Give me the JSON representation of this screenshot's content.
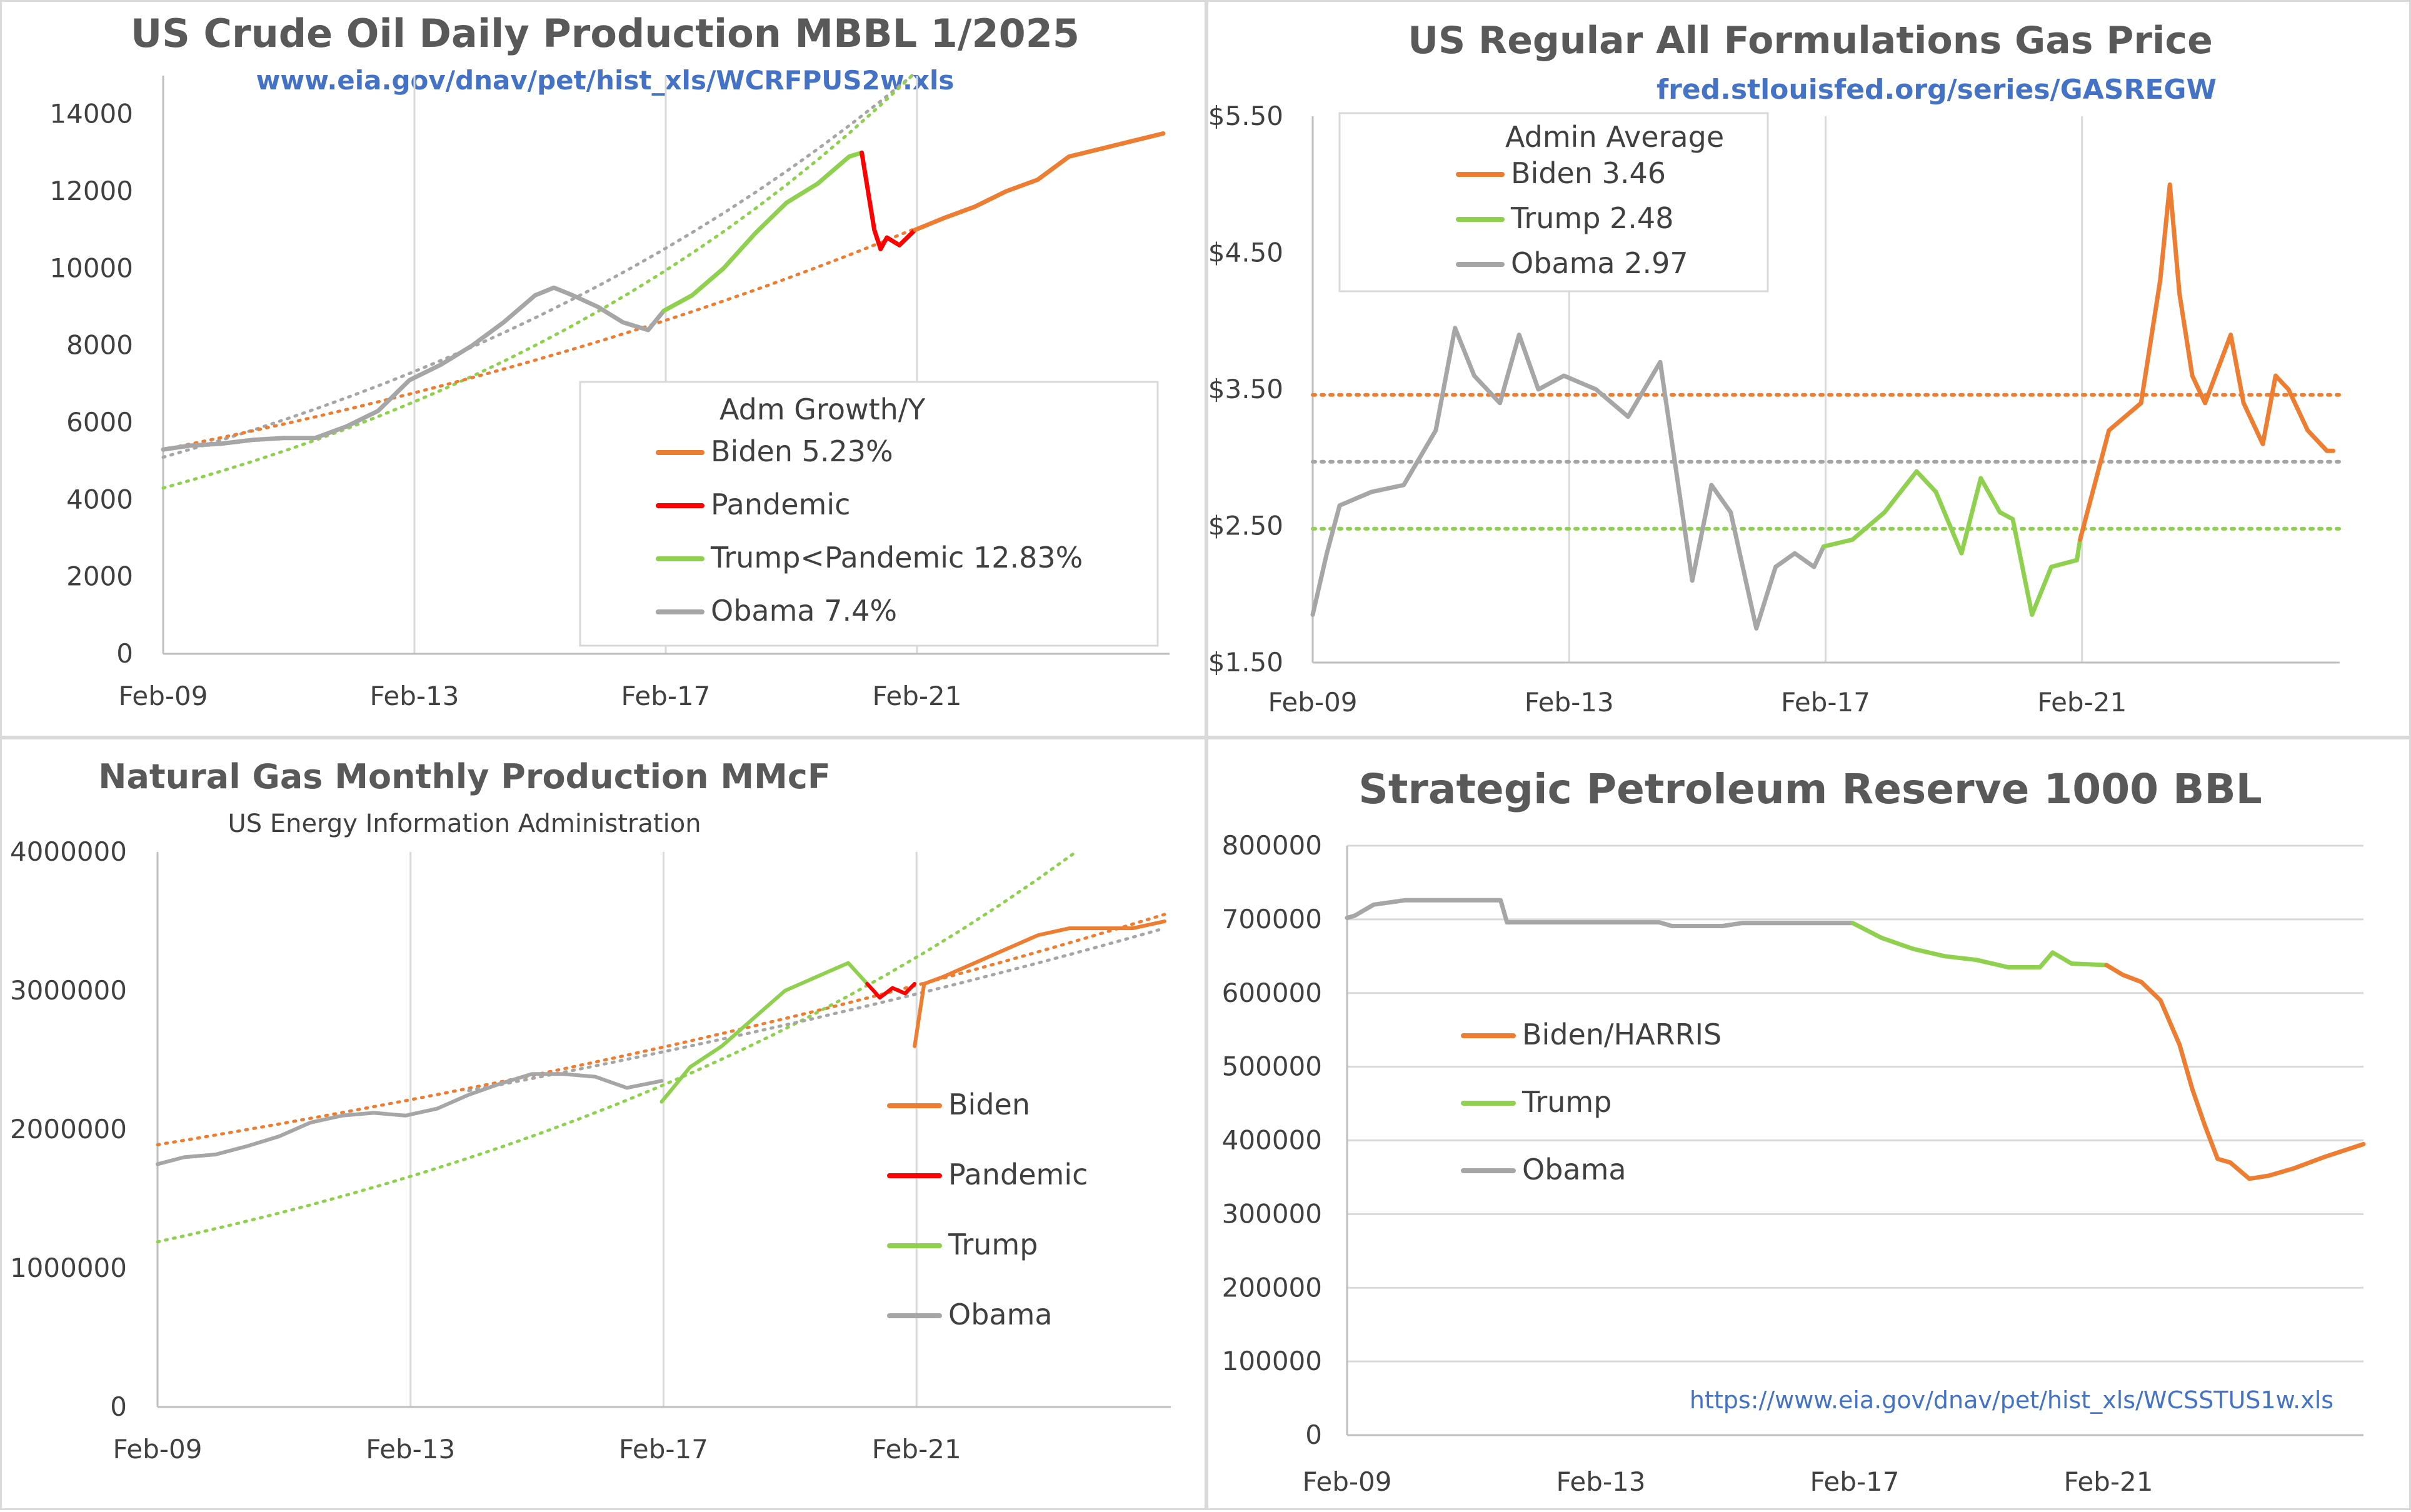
{
  "colors": {
    "biden": "#ed7d31",
    "pandemic": "#ff0000",
    "trump": "#8fd14f",
    "obama": "#a6a6a6",
    "grid": "#d9d9d9",
    "link": "#4472c4"
  },
  "chart_data": [
    {
      "id": "crude",
      "type": "line",
      "title": "US Crude Oil Daily Production MBBL 1/2025",
      "subtitle": "www.eia.gov/dnav/pet/hist_xls/WCRFPUS2w.xls",
      "x_ticks": [
        "Feb-09",
        "Feb-13",
        "Feb-17",
        "Feb-21"
      ],
      "xlim": [
        2009.08,
        2025.1
      ],
      "ylim": [
        0,
        15000
      ],
      "y_ticks": [
        0,
        2000,
        4000,
        6000,
        8000,
        10000,
        12000,
        14000
      ],
      "y_tick_labels": [
        "0",
        "2000",
        "4000",
        "6000",
        "8000",
        "10000",
        "12000",
        "14000"
      ],
      "grid": "vertical",
      "legend": {
        "title": "Adm  Growth/Y",
        "entries": [
          "Biden 5.23%",
          "Pandemic",
          "Trump<Pandemic 12.83%",
          "Obama 7.4%"
        ]
      },
      "series": [
        {
          "name": "Obama",
          "x": [
            2009.08,
            2009.5,
            2010.0,
            2010.5,
            2011.0,
            2011.5,
            2012.0,
            2012.5,
            2013.0,
            2013.5,
            2014.0,
            2014.5,
            2015.0,
            2015.3,
            2015.6,
            2016.0,
            2016.4,
            2016.8,
            2017.05
          ],
          "y": [
            5300,
            5400,
            5450,
            5550,
            5600,
            5600,
            5900,
            6300,
            7100,
            7500,
            8000,
            8600,
            9300,
            9500,
            9300,
            9000,
            8600,
            8400,
            8900
          ]
        },
        {
          "name": "Trump",
          "x": [
            2017.05,
            2017.5,
            2018.0,
            2018.5,
            2019.0,
            2019.5,
            2020.0,
            2020.2
          ],
          "y": [
            8900,
            9300,
            10000,
            10900,
            11700,
            12200,
            12900,
            13000
          ]
        },
        {
          "name": "Pandemic",
          "x": [
            2020.2,
            2020.3,
            2020.4,
            2020.5,
            2020.6,
            2020.8,
            2021.05
          ],
          "y": [
            13000,
            12000,
            11000,
            10500,
            10800,
            10600,
            11000
          ]
        },
        {
          "name": "Biden",
          "x": [
            2021.05,
            2021.5,
            2022.0,
            2022.5,
            2023.0,
            2023.5,
            2024.0,
            2024.5,
            2025.0
          ],
          "y": [
            11000,
            11300,
            11600,
            12000,
            12300,
            12900,
            13100,
            13300,
            13500
          ]
        }
      ],
      "trendlines": [
        {
          "name": "Obama",
          "x": [
            2009.08,
            2021.0
          ],
          "y": [
            5100,
            15000
          ]
        },
        {
          "name": "Trump",
          "x": [
            2009.08,
            2021.0
          ],
          "y": [
            4300,
            15000
          ]
        },
        {
          "name": "Biden",
          "x": [
            2009.08,
            2021.0
          ],
          "y": [
            5300,
            11000
          ]
        }
      ]
    },
    {
      "id": "gas-price",
      "type": "line",
      "title": "US Regular All Formulations Gas Price",
      "subtitle": "fred.stlouisfed.org/series/GASREGW",
      "x_ticks": [
        "Feb-09",
        "Feb-13",
        "Feb-17",
        "Feb-21"
      ],
      "xlim": [
        2009.08,
        2025.1
      ],
      "ylim": [
        1.5,
        5.5
      ],
      "y_ticks": [
        1.5,
        2.5,
        3.5,
        4.5,
        5.5
      ],
      "y_tick_labels": [
        "$1.50",
        "$2.50",
        "$3.50",
        "$4.50",
        "$5.50"
      ],
      "grid": "vertical",
      "legend": {
        "title": "Admin Average",
        "entries": [
          "Biden 3.46",
          "Trump 2.48",
          "Obama 2.97"
        ]
      },
      "series": [
        {
          "name": "Obama",
          "x": [
            2009.08,
            2009.3,
            2009.5,
            2010.0,
            2010.5,
            2011.0,
            2011.3,
            2011.6,
            2012.0,
            2012.3,
            2012.6,
            2013.0,
            2013.5,
            2014.0,
            2014.5,
            2015.0,
            2015.3,
            2015.6,
            2016.0,
            2016.3,
            2016.6,
            2016.9,
            2017.05
          ],
          "y": [
            1.85,
            2.3,
            2.65,
            2.75,
            2.8,
            3.2,
            3.95,
            3.6,
            3.4,
            3.9,
            3.5,
            3.6,
            3.5,
            3.3,
            3.7,
            2.1,
            2.8,
            2.6,
            1.75,
            2.2,
            2.3,
            2.2,
            2.35
          ]
        },
        {
          "name": "Trump",
          "x": [
            2017.05,
            2017.5,
            2018.0,
            2018.5,
            2018.8,
            2019.2,
            2019.5,
            2019.8,
            2020.0,
            2020.3,
            2020.6,
            2021.0,
            2021.05
          ],
          "y": [
            2.35,
            2.4,
            2.6,
            2.9,
            2.75,
            2.3,
            2.85,
            2.6,
            2.55,
            1.85,
            2.2,
            2.25,
            2.4
          ]
        },
        {
          "name": "Biden",
          "x": [
            2021.05,
            2021.5,
            2022.0,
            2022.3,
            2022.45,
            2022.6,
            2022.8,
            2023.0,
            2023.4,
            2023.6,
            2023.9,
            2024.1,
            2024.3,
            2024.6,
            2024.9,
            2025.0
          ],
          "y": [
            2.4,
            3.2,
            3.4,
            4.3,
            5.0,
            4.2,
            3.6,
            3.4,
            3.9,
            3.4,
            3.1,
            3.6,
            3.5,
            3.2,
            3.05,
            3.05
          ]
        }
      ],
      "averages": [
        {
          "name": "Biden",
          "value": 3.46
        },
        {
          "name": "Trump",
          "value": 2.48
        },
        {
          "name": "Obama",
          "value": 2.97
        }
      ]
    },
    {
      "id": "natgas",
      "type": "line",
      "title": "Natural Gas Monthly Production MMcF",
      "subtitle": "US Energy Information Administration",
      "x_ticks": [
        "Feb-09",
        "Feb-13",
        "Feb-17",
        "Feb-21"
      ],
      "xlim": [
        2009.08,
        2025.1
      ],
      "ylim": [
        0,
        4000000
      ],
      "y_ticks": [
        0,
        1000000,
        2000000,
        3000000,
        4000000
      ],
      "y_tick_labels": [
        "0",
        "1000000",
        "2000000",
        "3000000",
        "4000000"
      ],
      "grid": "vertical",
      "legend": {
        "title": "",
        "entries": [
          "Biden",
          "Pandemic",
          "Trump",
          "Obama"
        ]
      },
      "series": [
        {
          "name": "Obama",
          "x": [
            2009.08,
            2009.5,
            2010.0,
            2010.5,
            2011.0,
            2011.5,
            2012.0,
            2012.5,
            2013.0,
            2013.5,
            2014.0,
            2014.5,
            2015.0,
            2015.5,
            2016.0,
            2016.5,
            2017.05
          ],
          "y": [
            1750000,
            1800000,
            1820000,
            1880000,
            1950000,
            2050000,
            2100000,
            2120000,
            2100000,
            2150000,
            2250000,
            2330000,
            2400000,
            2400000,
            2380000,
            2300000,
            2350000
          ]
        },
        {
          "name": "Trump",
          "x": [
            2017.05,
            2017.5,
            2018.0,
            2018.5,
            2019.0,
            2019.5,
            2020.0,
            2020.3
          ],
          "y": [
            2200000,
            2450000,
            2600000,
            2800000,
            3000000,
            3100000,
            3200000,
            3050000
          ]
        },
        {
          "name": "Pandemic",
          "x": [
            2020.3,
            2020.5,
            2020.7,
            2020.9,
            2021.05
          ],
          "y": [
            3050000,
            2950000,
            3020000,
            2980000,
            3050000
          ]
        },
        {
          "name": "Biden",
          "x": [
            2021.05,
            2021.2,
            2021.5,
            2022.0,
            2022.5,
            2023.0,
            2023.5,
            2024.0,
            2024.5,
            2025.0
          ],
          "y": [
            2600000,
            3050000,
            3100000,
            3200000,
            3300000,
            3400000,
            3450000,
            3450000,
            3450000,
            3500000
          ]
        }
      ],
      "trendlines": [
        {
          "name": "Biden",
          "x": [
            2009.08,
            2025.0
          ],
          "y": [
            1890000,
            3550000
          ]
        },
        {
          "name": "Trump",
          "x": [
            2009.08,
            2023.6
          ],
          "y": [
            1190000,
            4000000
          ]
        },
        {
          "name": "Obama",
          "x": [
            2014.0,
            2025.0
          ],
          "y": [
            2280000,
            3450000
          ]
        }
      ]
    },
    {
      "id": "spr",
      "type": "line",
      "title": "Strategic Petroleum Reserve 1000 BBL",
      "footnote": "https://www.eia.gov/dnav/pet/hist_xls/WCSSTUS1w.xls",
      "x_ticks": [
        "Feb-09",
        "Feb-13",
        "Feb-17",
        "Feb-21"
      ],
      "xlim": [
        2009.08,
        2025.1
      ],
      "ylim": [
        0,
        800000
      ],
      "y_ticks": [
        0,
        100000,
        200000,
        300000,
        400000,
        500000,
        600000,
        700000,
        800000
      ],
      "y_tick_labels": [
        "0",
        "100000",
        "200000",
        "300000",
        "400000",
        "500000",
        "600000",
        "700000",
        "800000"
      ],
      "grid": "horizontal",
      "legend": {
        "title": "",
        "entries": [
          "Biden/HARRIS",
          "Trump",
          "Obama"
        ]
      },
      "series": [
        {
          "name": "Obama",
          "x": [
            2009.08,
            2009.2,
            2009.5,
            2010.0,
            2011.0,
            2011.5,
            2011.6,
            2012.0,
            2013.0,
            2014.0,
            2014.2,
            2015.0,
            2015.3,
            2016.0,
            2017.05
          ],
          "y": [
            702000,
            705000,
            720000,
            726000,
            726000,
            726000,
            696000,
            696000,
            696000,
            696000,
            691000,
            691000,
            695000,
            695000,
            695000
          ]
        },
        {
          "name": "Trump",
          "x": [
            2017.05,
            2017.5,
            2018.0,
            2018.5,
            2019.0,
            2019.5,
            2020.0,
            2020.2,
            2020.5,
            2021.05
          ],
          "y": [
            695000,
            675000,
            660000,
            650000,
            645000,
            635000,
            635000,
            655000,
            640000,
            638000
          ]
        },
        {
          "name": "Biden",
          "x": [
            2021.05,
            2021.3,
            2021.6,
            2021.9,
            2022.2,
            2022.4,
            2022.6,
            2022.8,
            2023.0,
            2023.3,
            2023.6,
            2024.0,
            2024.5,
            2025.1
          ],
          "y": [
            638000,
            625000,
            615000,
            590000,
            530000,
            470000,
            420000,
            375000,
            370000,
            348000,
            352000,
            362000,
            378000,
            395000
          ]
        }
      ]
    }
  ]
}
